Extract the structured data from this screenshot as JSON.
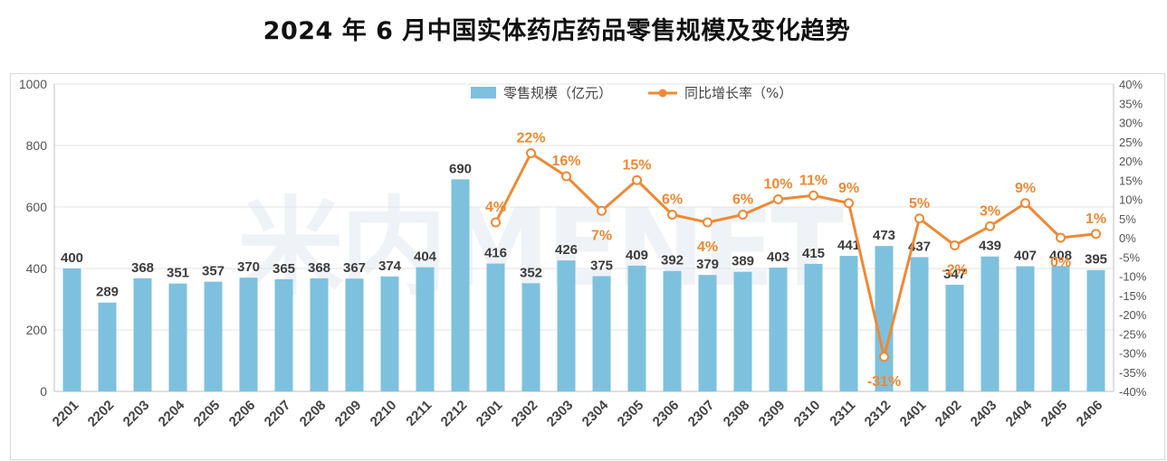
{
  "title": "2024 年 6 月中国实体药店药品零售规模及变化趋势",
  "watermark": "米内MENET",
  "colors": {
    "bar": "#7ec1de",
    "line": "#ed8936",
    "axis_text": "#555555",
    "grid": "#e3e3e3"
  },
  "chart_data": {
    "type": "bar",
    "categories": [
      "2201",
      "2202",
      "2203",
      "2204",
      "2205",
      "2206",
      "2207",
      "2208",
      "2209",
      "2210",
      "2211",
      "2212",
      "2301",
      "2302",
      "2303",
      "2304",
      "2305",
      "2306",
      "2307",
      "2308",
      "2309",
      "2310",
      "2311",
      "2312",
      "2401",
      "2402",
      "2403",
      "2404",
      "2405",
      "2406"
    ],
    "series": [
      {
        "name": "零售规模（亿元）",
        "type": "bar",
        "axis": "left",
        "values": [
          400,
          289,
          368,
          351,
          357,
          370,
          365,
          368,
          367,
          374,
          404,
          690,
          416,
          352,
          426,
          375,
          409,
          392,
          379,
          389,
          403,
          415,
          441,
          473,
          437,
          347,
          439,
          407,
          408,
          395
        ]
      },
      {
        "name": "同比增长率（%）",
        "type": "line",
        "axis": "right",
        "values": [
          null,
          null,
          null,
          null,
          null,
          null,
          null,
          null,
          null,
          null,
          null,
          null,
          4,
          22,
          16,
          7,
          15,
          6,
          4,
          6,
          10,
          11,
          9,
          -31,
          5,
          -2,
          3,
          9,
          0,
          1
        ]
      }
    ],
    "left_axis": {
      "range": [
        0,
        1000
      ],
      "ticks": [
        "0",
        "200",
        "400",
        "600",
        "800",
        "1000"
      ]
    },
    "right_axis": {
      "range": [
        -40,
        40
      ],
      "ticks": [
        "-40%",
        "-35%",
        "-30%",
        "-25%",
        "-20%",
        "-15%",
        "-10%",
        "-5%",
        "0%",
        "5%",
        "10%",
        "15%",
        "20%",
        "25%",
        "30%",
        "35%",
        "40%"
      ]
    },
    "legend_position": "top-center",
    "grid": true
  }
}
